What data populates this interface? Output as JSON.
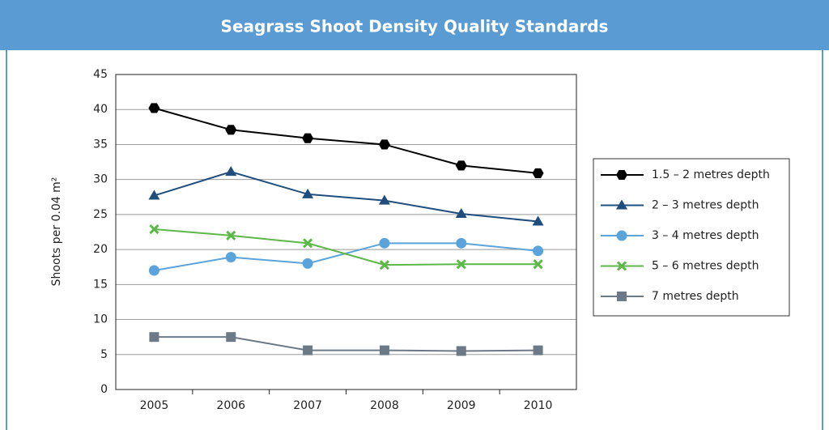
{
  "chart_data": {
    "type": "line",
    "title": "Seagrass Shoot Density Quality Standards",
    "y_label": "Shoots per 0.04 m²",
    "categories": [
      "2005",
      "2006",
      "2007",
      "2008",
      "2009",
      "2010"
    ],
    "ylim": [
      0,
      45
    ],
    "yticks": [
      0,
      5,
      10,
      15,
      20,
      25,
      30,
      35,
      40,
      45
    ],
    "grid": true,
    "legend": "right",
    "series": [
      {
        "name": "1.5 – 2 metres depth",
        "color": "#000000",
        "marker": "hexagon",
        "values": [
          40.2,
          37.1,
          35.9,
          35,
          32,
          30.9
        ]
      },
      {
        "name": "2 – 3 metres depth",
        "color": "#1f4e7d",
        "marker": "triangle",
        "values": [
          27.7,
          31.1,
          27.9,
          27,
          25.1,
          24
        ]
      },
      {
        "name": "3 – 4 metres depth",
        "color": "#5aa3db",
        "marker": "circle",
        "values": [
          17,
          18.9,
          18,
          20.9,
          20.9,
          19.8
        ]
      },
      {
        "name": "5 – 6 metres depth",
        "color": "#5cb848",
        "marker": "x",
        "values": [
          22.9,
          22,
          20.9,
          17.8,
          17.9,
          17.9
        ]
      },
      {
        "name": "7 metres depth",
        "color": "#6b7a86",
        "marker": "square",
        "values": [
          7.5,
          7.5,
          5.6,
          5.6,
          5.5,
          5.6
        ]
      }
    ]
  }
}
